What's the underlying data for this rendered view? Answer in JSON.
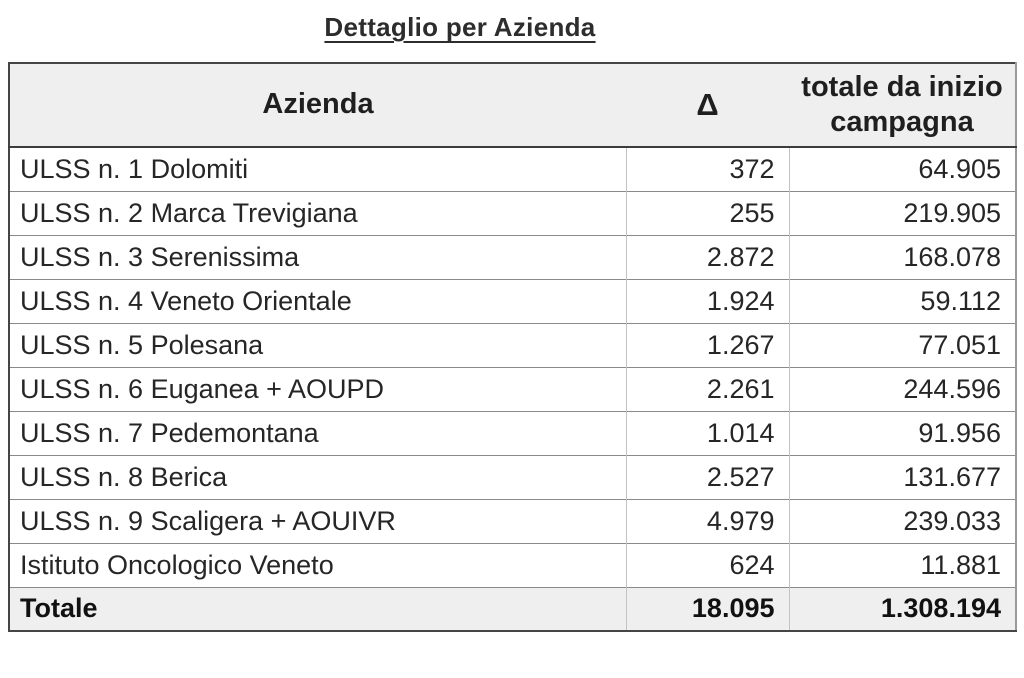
{
  "title": "Dettaglio per Azienda",
  "table": {
    "columns": [
      "Azienda",
      "Δ",
      "totale da inizio campagna"
    ],
    "rows": [
      {
        "azienda": "ULSS n. 1 Dolomiti",
        "delta": "372",
        "totale": "64.905"
      },
      {
        "azienda": "ULSS n. 2 Marca Trevigiana",
        "delta": "255",
        "totale": "219.905"
      },
      {
        "azienda": "ULSS n. 3 Serenissima",
        "delta": "2.872",
        "totale": "168.078"
      },
      {
        "azienda": "ULSS n. 4 Veneto Orientale",
        "delta": "1.924",
        "totale": "59.112"
      },
      {
        "azienda": "ULSS n. 5 Polesana",
        "delta": "1.267",
        "totale": "77.051"
      },
      {
        "azienda": "ULSS n. 6 Euganea + AOUPD",
        "delta": "2.261",
        "totale": "244.596"
      },
      {
        "azienda": "ULSS n. 7 Pedemontana",
        "delta": "1.014",
        "totale": "91.956"
      },
      {
        "azienda": "ULSS n. 8 Berica",
        "delta": "2.527",
        "totale": "131.677"
      },
      {
        "azienda": "ULSS n. 9 Scaligera + AOUIVR",
        "delta": "4.979",
        "totale": "239.033"
      },
      {
        "azienda": "Istituto Oncologico Veneto",
        "delta": "624",
        "totale": "11.881"
      }
    ],
    "total_row": {
      "azienda": "Totale",
      "delta": "18.095",
      "totale": "1.308.194"
    }
  },
  "colors": {
    "header_background": "#efefef",
    "total_row_background": "#efefef",
    "outer_border": "#454545",
    "row_separator": "#8a8a8a",
    "column_separator": "#c3c3c3",
    "text": "#262626"
  }
}
